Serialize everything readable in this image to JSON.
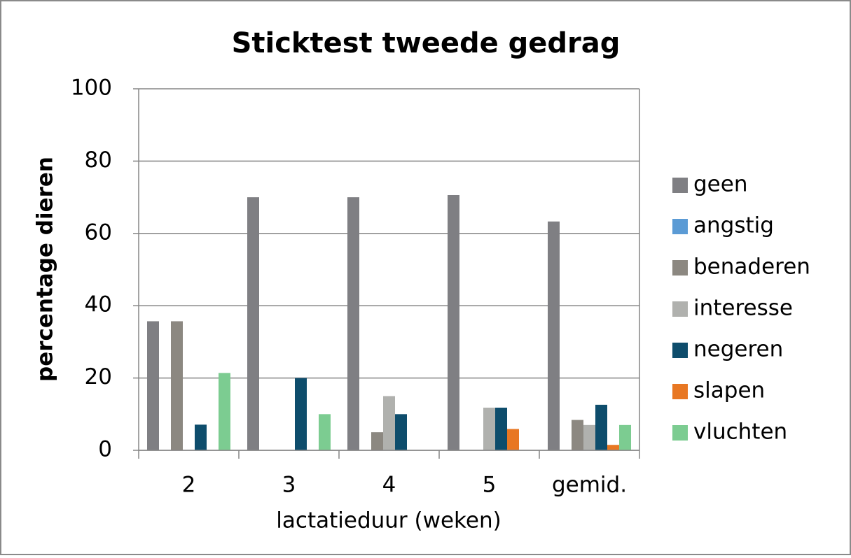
{
  "chart_data": {
    "type": "bar",
    "title": "Sticktest tweede gedrag",
    "x_label": "lactatieduur (weken)",
    "y_label": "percentage dieren",
    "categories": [
      "2",
      "3",
      "4",
      "5",
      "gemid."
    ],
    "series": [
      {
        "name": "geen",
        "color": "#7f7f83",
        "values": [
          35.7,
          70,
          70,
          70.6,
          63.3
        ]
      },
      {
        "name": "angstig",
        "color": "#5b9bd5",
        "values": [
          0,
          0,
          0,
          0,
          0
        ]
      },
      {
        "name": "benaderen",
        "color": "#8c8881",
        "values": [
          35.7,
          0,
          5,
          0,
          8.4
        ]
      },
      {
        "name": "interesse",
        "color": "#b0b1ae",
        "values": [
          0,
          0,
          15,
          11.8,
          7
        ]
      },
      {
        "name": "negeren",
        "color": "#0e4d6c",
        "values": [
          7.1,
          20,
          10,
          11.8,
          12.6
        ]
      },
      {
        "name": "slapen",
        "color": "#e87722",
        "values": [
          0,
          0,
          0,
          5.9,
          1.5
        ]
      },
      {
        "name": "vluchten",
        "color": "#7ccc91",
        "values": [
          21.4,
          10,
          0,
          0,
          7
        ]
      }
    ],
    "ylim": [
      0,
      100
    ],
    "yticks": [
      0,
      20,
      40,
      60,
      80,
      100
    ],
    "grid": true,
    "legend": "right"
  }
}
